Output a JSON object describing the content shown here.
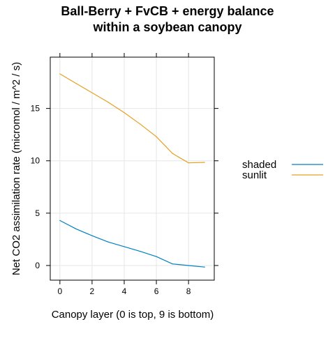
{
  "chart_data": {
    "type": "line",
    "title_lines": [
      "Ball-Berry + FvCB + energy balance",
      "within a soybean canopy"
    ],
    "xlabel": "Canopy layer (0 is top, 9 is bottom)",
    "ylabel": "Net CO2 assimilation rate (micromol / m^2 / s)",
    "xlim": [
      -0.6,
      9.6
    ],
    "ylim": [
      -1.4,
      19.9
    ],
    "x_ticks": [
      0,
      2,
      4,
      6,
      8
    ],
    "y_ticks": [
      0,
      5,
      10,
      15
    ],
    "grid": true,
    "legend_position": "right",
    "x": [
      0,
      1,
      2,
      3,
      4,
      5,
      6,
      7,
      8,
      9
    ],
    "series": [
      {
        "name": "shaded",
        "color": "#0080c0",
        "values": [
          4.3,
          3.5,
          2.85,
          2.25,
          1.8,
          1.35,
          0.85,
          0.15,
          0.0,
          -0.15
        ]
      },
      {
        "name": "sunlit",
        "color": "#e5a020",
        "values": [
          18.3,
          17.4,
          16.5,
          15.6,
          14.6,
          13.5,
          12.3,
          10.7,
          9.8,
          9.85
        ]
      }
    ]
  }
}
